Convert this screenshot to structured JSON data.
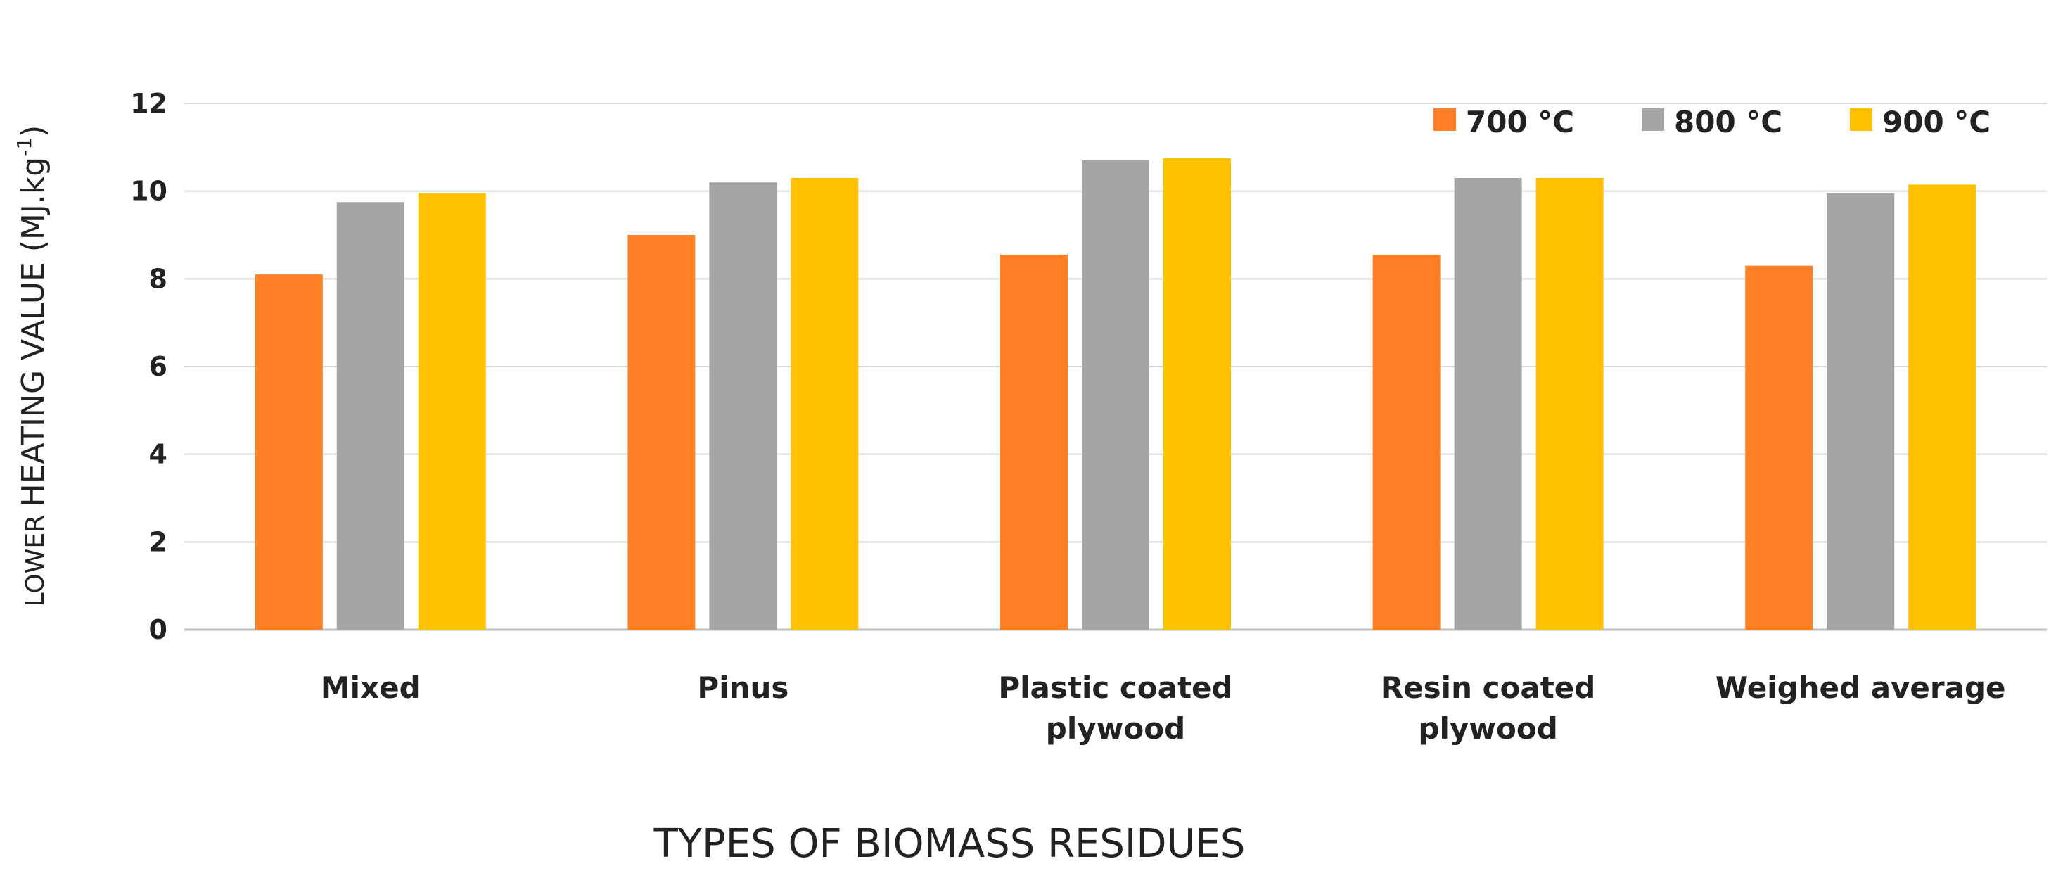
{
  "chart_data": {
    "type": "bar",
    "categories": [
      [
        "Mixed"
      ],
      [
        "Pinus"
      ],
      [
        "Plastic coated",
        "plywood"
      ],
      [
        "Resin coated",
        "plywood"
      ],
      [
        "Weighed average"
      ]
    ],
    "series": [
      {
        "name": "700 °C",
        "color": "#FF7F27",
        "values": [
          8.1,
          9.0,
          8.55,
          8.55,
          8.3
        ]
      },
      {
        "name": "800 °C",
        "color": "#A5A5A5",
        "values": [
          9.75,
          10.2,
          10.7,
          10.3,
          9.95
        ]
      },
      {
        "name": "900 °C",
        "color": "#FFC000",
        "values": [
          9.95,
          10.3,
          10.75,
          10.3,
          10.15
        ]
      }
    ],
    "ylim": [
      0,
      12
    ],
    "yticks": [
      0,
      2,
      4,
      6,
      8,
      10,
      12
    ],
    "ylabel": {
      "small": "LOWER ",
      "main": "HEATING VALUE (MJ.kg",
      "sup": "-1",
      "close": ")"
    },
    "xlabel": "TYPES OF BIOMASS RESIDUES",
    "grid": true,
    "legend_position": "top-right"
  }
}
